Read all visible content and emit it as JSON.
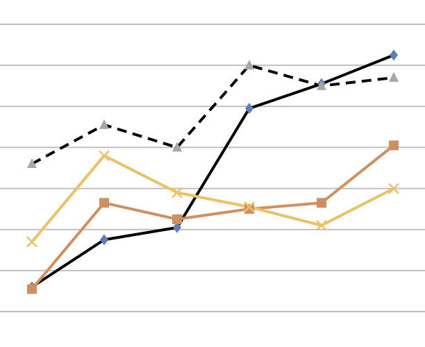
{
  "chart_data": {
    "type": "line",
    "x": [
      1,
      2,
      3,
      4,
      5,
      6
    ],
    "ylim": [
      0,
      7
    ],
    "grid": true,
    "title": "",
    "xlabel": "",
    "ylabel": "",
    "gridline_color": "#bfbfbf",
    "series": [
      {
        "values": [
          0.6,
          1.75,
          2.05,
          4.95,
          5.55,
          6.25
        ],
        "color": "#000000",
        "dash": "solid",
        "marker": "diamond",
        "marker_color": "#5b7fb8"
      },
      {
        "values": [
          0.55,
          2.65,
          2.25,
          2.5,
          2.65,
          4.05
        ],
        "color": "#d08f5e",
        "dash": "solid",
        "marker": "square",
        "marker_color": "#d08f5e"
      },
      {
        "values": [
          1.7,
          3.8,
          2.9,
          2.55,
          2.1,
          3.0
        ],
        "color": "#ecc166",
        "dash": "solid",
        "marker": "x",
        "marker_color": "#ecc166"
      },
      {
        "values": [
          3.6,
          4.55,
          4.0,
          6.0,
          5.5,
          5.7
        ],
        "color": "#000000",
        "dash": "dashed",
        "marker": "triangle",
        "marker_color": "#a6a6a6"
      }
    ]
  }
}
